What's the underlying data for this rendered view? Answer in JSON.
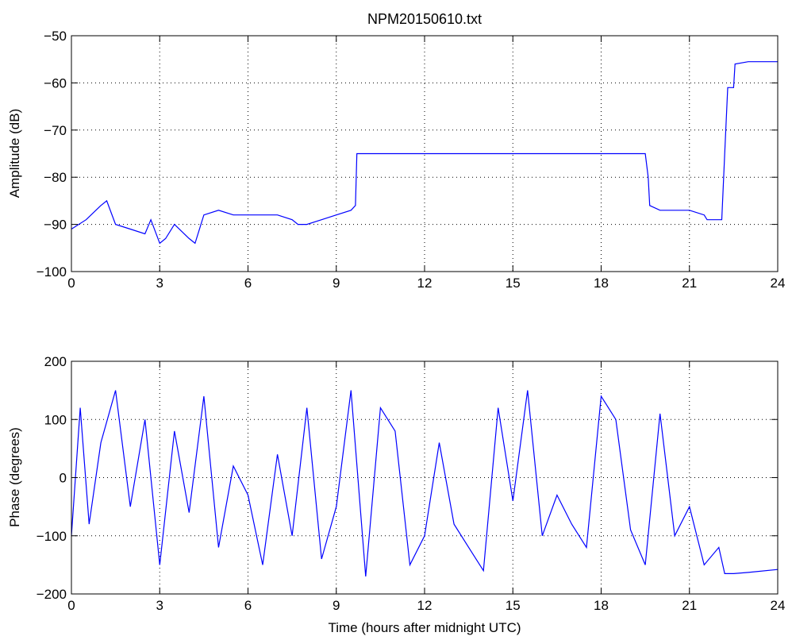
{
  "figure": {
    "title": "NPM20150610.txt",
    "xlabel": "Time (hours after midnight UTC)"
  },
  "chart_data": [
    {
      "type": "line",
      "title": "NPM20150610.txt",
      "xlabel": "",
      "ylabel": "Amplitude (dB)",
      "xlim": [
        0,
        24
      ],
      "ylim": [
        -100,
        -50
      ],
      "xticks": [
        "0",
        "3",
        "6",
        "9",
        "12",
        "15",
        "18",
        "21",
        "24"
      ],
      "yticks": [
        "−100",
        "−90",
        "−80",
        "−70",
        "−60",
        "−50"
      ],
      "grid": true,
      "series_color": "#0000ff",
      "x": [
        0,
        0.5,
        1.0,
        1.2,
        1.5,
        2.0,
        2.5,
        2.7,
        3.0,
        3.2,
        3.5,
        4.0,
        4.2,
        4.5,
        5.0,
        5.5,
        6.0,
        6.5,
        7.0,
        7.5,
        7.7,
        8.0,
        8.5,
        9.0,
        9.5,
        9.65,
        9.7,
        10.5,
        12,
        15,
        18,
        19.5,
        19.6,
        19.65,
        20,
        21,
        21.5,
        21.6,
        21.8,
        22.1,
        22.2,
        22.3,
        22.5,
        22.55,
        23,
        24
      ],
      "values": [
        -91,
        -89,
        -86,
        -85,
        -90,
        -91,
        -92,
        -89,
        -94,
        -93,
        -90,
        -93,
        -94,
        -88,
        -87,
        -88,
        -88,
        -88,
        -88,
        -89,
        -90,
        -90,
        -89,
        -88,
        -87,
        -86,
        -75,
        -75,
        -75,
        -75,
        -75,
        -75,
        -80,
        -86,
        -87,
        -87,
        -88,
        -89,
        -89,
        -89,
        -75,
        -61,
        -61,
        -56,
        -55.5,
        -55.5
      ]
    },
    {
      "type": "line",
      "title": "",
      "xlabel": "Time (hours after midnight UTC)",
      "ylabel": "Phase (degrees)",
      "xlim": [
        0,
        24
      ],
      "ylim": [
        -200,
        200
      ],
      "xticks": [
        "0",
        "3",
        "6",
        "9",
        "12",
        "15",
        "18",
        "21",
        "24"
      ],
      "yticks": [
        "−200",
        "−100",
        "0",
        "100",
        "200"
      ],
      "grid": true,
      "series_color": "#0000ff",
      "x": [
        0,
        0.3,
        0.6,
        1.0,
        1.5,
        2.0,
        2.5,
        3.0,
        3.5,
        4.0,
        4.5,
        5.0,
        5.5,
        6.0,
        6.5,
        7.0,
        7.5,
        8.0,
        8.5,
        9.0,
        9.5,
        10.0,
        10.5,
        11.0,
        11.5,
        12.0,
        12.5,
        13.0,
        13.5,
        14.0,
        14.5,
        15.0,
        15.5,
        16.0,
        16.5,
        17.0,
        17.5,
        18.0,
        18.5,
        19.0,
        19.5,
        20.0,
        20.5,
        21.0,
        21.5,
        22.0,
        22.2,
        22.5,
        23.0,
        24.0
      ],
      "values": [
        -100,
        120,
        -80,
        60,
        150,
        -50,
        100,
        -150,
        80,
        -60,
        140,
        -120,
        20,
        -30,
        -150,
        40,
        -100,
        120,
        -140,
        -50,
        150,
        -170,
        120,
        80,
        -150,
        -100,
        60,
        -80,
        -120,
        -160,
        120,
        -40,
        150,
        -100,
        -30,
        -80,
        -120,
        140,
        100,
        -90,
        -150,
        110,
        -100,
        -50,
        -150,
        -120,
        -165,
        -165,
        -163,
        -158
      ]
    }
  ]
}
